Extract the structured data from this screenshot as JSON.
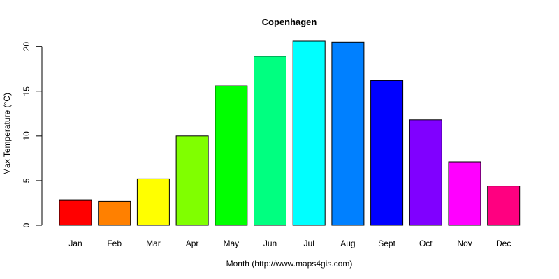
{
  "chart_data": {
    "type": "bar",
    "title": "Copenhagen",
    "xlabel": "Month (http://www.maps4gis.com)",
    "ylabel": "Max Temperature (°C)",
    "categories": [
      "Jan",
      "Feb",
      "Mar",
      "Apr",
      "May",
      "Jun",
      "Jul",
      "Aug",
      "Sept",
      "Oct",
      "Nov",
      "Dec"
    ],
    "values": [
      2.8,
      2.7,
      5.2,
      10.0,
      15.6,
      18.9,
      20.6,
      20.5,
      16.2,
      11.8,
      7.1,
      4.4
    ],
    "colors": [
      "#FF0000",
      "#FF8000",
      "#FFFF00",
      "#80FF00",
      "#00FF00",
      "#00FF80",
      "#00FFFF",
      "#0080FF",
      "#0000FF",
      "#8000FF",
      "#FF00FF",
      "#FF0080"
    ],
    "ylim": [
      0,
      20.6
    ],
    "yticks": [
      0,
      5,
      10,
      15,
      20
    ],
    "grid": false,
    "legend": "none"
  }
}
